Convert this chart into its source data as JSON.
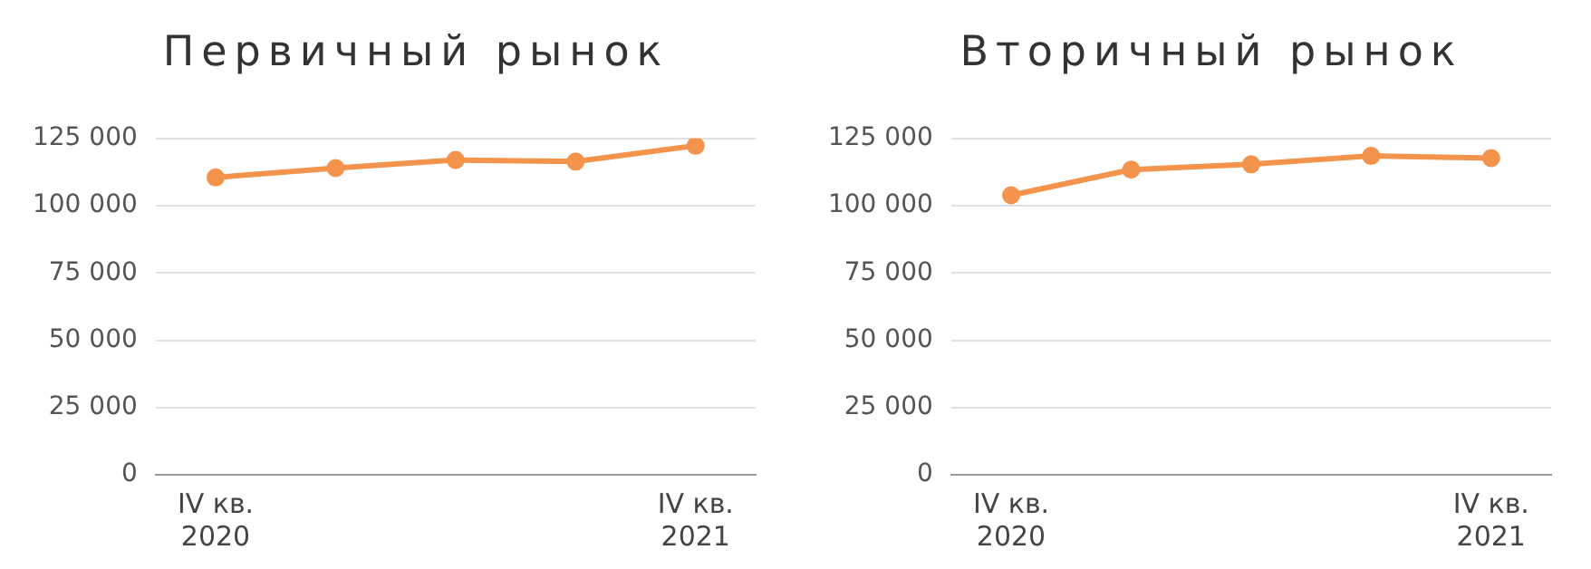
{
  "chart_data": [
    {
      "type": "line",
      "title": "Первичный рынок",
      "categories": [
        "IV кв. 2020",
        null,
        null,
        null,
        "IV кв. 2021"
      ],
      "series": [
        {
          "color": "#f4944c",
          "values": [
            110500,
            114000,
            117000,
            116400,
            122300
          ]
        }
      ],
      "ylim": [
        0,
        125000
      ],
      "yticks": [
        {
          "value": 0,
          "label": "0"
        },
        {
          "value": 25000,
          "label": "25 000"
        },
        {
          "value": 50000,
          "label": "50 000"
        },
        {
          "value": 75000,
          "label": "75 000"
        },
        {
          "value": 100000,
          "label": "100 000"
        },
        {
          "value": 125000,
          "label": "125 000"
        }
      ],
      "grid": "y",
      "legend": false,
      "marker": "circle",
      "line_style": "solid"
    },
    {
      "type": "line",
      "title": "Вторичный рынок",
      "categories": [
        "IV кв. 2020",
        null,
        null,
        null,
        "IV кв. 2021"
      ],
      "series": [
        {
          "color": "#f4944c",
          "values": [
            103900,
            113400,
            115400,
            118500,
            117700
          ]
        }
      ],
      "ylim": [
        0,
        125000
      ],
      "yticks": [
        {
          "value": 0,
          "label": "0"
        },
        {
          "value": 25000,
          "label": "25 000"
        },
        {
          "value": 50000,
          "label": "50 000"
        },
        {
          "value": 75000,
          "label": "75 000"
        },
        {
          "value": 100000,
          "label": "100 000"
        },
        {
          "value": 125000,
          "label": "125 000"
        }
      ],
      "grid": "y",
      "legend": false,
      "marker": "circle",
      "line_style": "solid"
    }
  ]
}
